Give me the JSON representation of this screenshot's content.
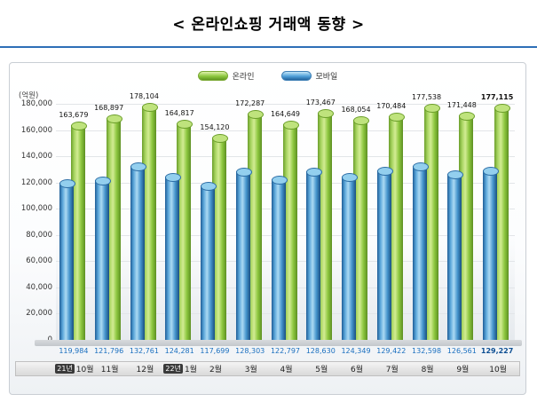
{
  "page_title": "< 온라인쇼핑 거래액 동향 >",
  "chart_data": {
    "type": "bar",
    "title": "온라인쇼핑 거래액 동향",
    "unit_label": "(억원)",
    "ylim": [
      0,
      180000
    ],
    "ytick_step": 20000,
    "grid": true,
    "legend_position": "top",
    "emphasize_last": true,
    "legend": [
      {
        "name": "온라인",
        "color": "#8CC63E"
      },
      {
        "name": "모바일",
        "color": "#4493CC"
      }
    ],
    "categories": [
      {
        "year": "21년",
        "month": "10월"
      },
      {
        "month": "11월"
      },
      {
        "month": "12월"
      },
      {
        "year": "22년",
        "month": "1월"
      },
      {
        "month": "2월"
      },
      {
        "month": "3월"
      },
      {
        "month": "4월"
      },
      {
        "month": "5월"
      },
      {
        "month": "6월"
      },
      {
        "month": "7월"
      },
      {
        "month": "8월"
      },
      {
        "month": "9월"
      },
      {
        "month": "10월"
      }
    ],
    "series": [
      {
        "name": "온라인",
        "values": [
          163679,
          168897,
          178104,
          164817,
          154120,
          172287,
          164649,
          173467,
          168054,
          170484,
          177538,
          171448,
          177115
        ],
        "labels": [
          "163,679",
          "168,897",
          "178,104",
          "164,817",
          "154,120",
          "172,287",
          "164,649",
          "173,467",
          "168,054",
          "170,484",
          "177,538",
          "171,448",
          "177,115"
        ]
      },
      {
        "name": "모바일",
        "values": [
          119984,
          121796,
          132761,
          124281,
          117699,
          128303,
          122797,
          128630,
          124349,
          129422,
          132598,
          126561,
          129227
        ],
        "labels": [
          "119,984",
          "121,796",
          "132,761",
          "124,281",
          "117,699",
          "128,303",
          "122,797",
          "128,630",
          "124,349",
          "129,422",
          "132,598",
          "126,561",
          "129,227"
        ]
      }
    ]
  }
}
